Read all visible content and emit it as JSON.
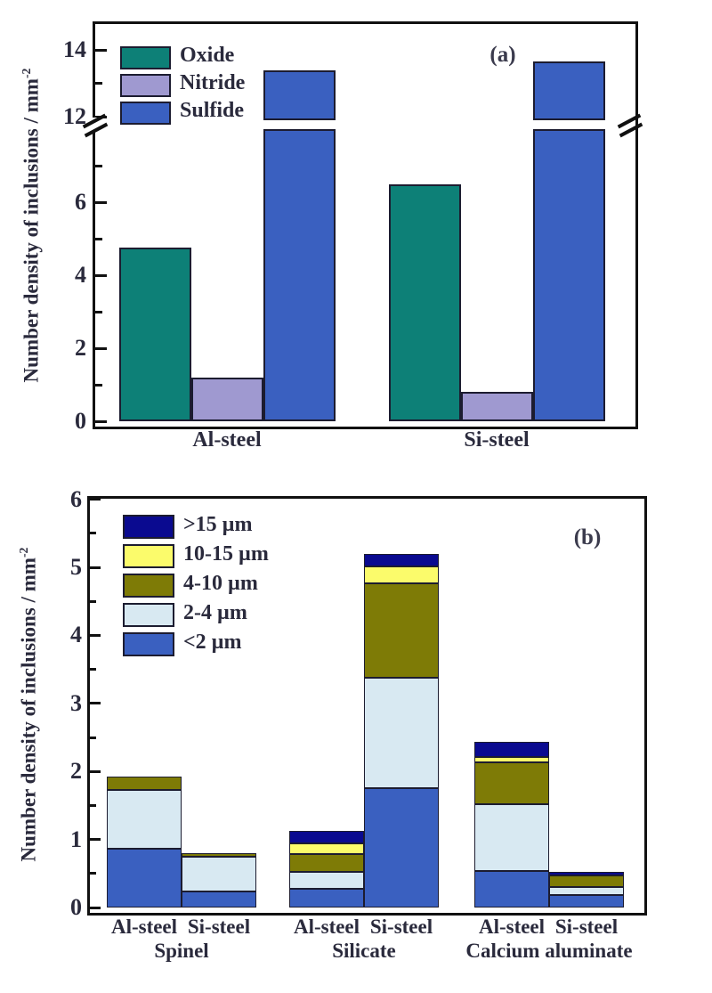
{
  "figure": {
    "background": "#ffffff",
    "axis_color": "#111111",
    "text_color": "#2a2a3c",
    "bar_border_color": "#1c1c30"
  },
  "chart_data": [
    {
      "type": "bar",
      "subtype": "grouped",
      "panel_label": "(a)",
      "title": "",
      "xlabel": "",
      "ylabel_main": "Number density of inclusions / mm",
      "ylabel_sup": "-2",
      "categories": [
        "Al-steel",
        "Si-steel"
      ],
      "series": [
        {
          "name": "Oxide",
          "color": "#0d8077",
          "values": [
            4.75,
            6.5
          ]
        },
        {
          "name": "Nitride",
          "color": "#9f99d0",
          "values": [
            1.2,
            0.8
          ]
        },
        {
          "name": "Sulfide",
          "color": "#3a60c0",
          "values": [
            13.4,
            13.65
          ]
        }
      ],
      "ylim": [
        0,
        14.8
      ],
      "axis_break": {
        "lower_max": 7.9,
        "upper_min": 12
      },
      "yticks_labeled_lower": [
        0,
        2,
        4,
        6
      ],
      "yticks_minor_lower": [
        1,
        3,
        5,
        7
      ],
      "yticks_labeled_upper": [
        12,
        14
      ],
      "yticks_minor_upper": [
        13
      ],
      "grid": false,
      "legend_position": "top-left"
    },
    {
      "type": "bar",
      "subtype": "stacked",
      "panel_label": "(b)",
      "title": "",
      "xlabel": "",
      "ylabel_main": "Number density of inclusions / mm",
      "ylabel_sup": "-2",
      "groups": [
        "Spinel",
        "Silicate",
        "Calcium aluminate"
      ],
      "bar_labels": [
        "Al-steel",
        "Si-steel",
        "Al-steel",
        "Si-steel",
        "Al-steel",
        "Si-steel"
      ],
      "series": [
        {
          "name": "<2 µm",
          "color": "#3a60c0",
          "values": [
            0.87,
            0.24,
            0.28,
            1.76,
            0.54,
            0.18
          ]
        },
        {
          "name": "2-4 µm",
          "color": "#d8e9f2",
          "values": [
            0.86,
            0.51,
            0.24,
            1.62,
            0.98,
            0.12
          ]
        },
        {
          "name": "4-10 µm",
          "color": "#7e7b06",
          "values": [
            0.19,
            0.05,
            0.26,
            1.39,
            0.61,
            0.17
          ]
        },
        {
          "name": "10-15 µm",
          "color": "#fbfb6b",
          "values": [
            0,
            0,
            0.16,
            0.24,
            0.08,
            0
          ]
        },
        {
          "name": ">15 µm",
          "color": "#0a0a90",
          "values": [
            0,
            0,
            0.18,
            0.18,
            0.23,
            0.06
          ]
        }
      ],
      "legend_order": [
        ">15 µm",
        "10-15 µm",
        "4-10 µm",
        "2-4 µm",
        "<2 µm"
      ],
      "ylim": [
        0,
        6
      ],
      "yticks_labeled": [
        0,
        1,
        2,
        3,
        4,
        5,
        6
      ],
      "yticks_minor": [
        0.5,
        1.5,
        2.5,
        3.5,
        4.5,
        5.5
      ],
      "grid": false,
      "legend_position": "top-left"
    }
  ]
}
